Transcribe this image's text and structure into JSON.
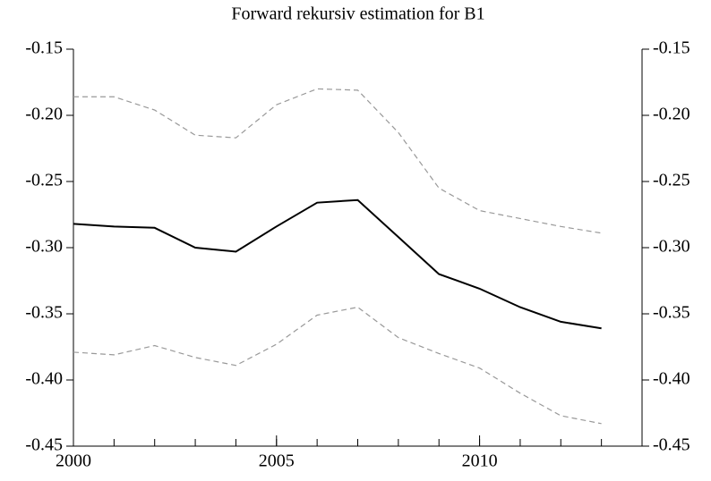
{
  "chart_data": {
    "type": "line",
    "title": "Forward rekursiv estimation for B1",
    "x": [
      2000,
      2001,
      2002,
      2003,
      2004,
      2005,
      2006,
      2007,
      2008,
      2009,
      2010,
      2011,
      2012,
      2013
    ],
    "series": [
      {
        "color": "#000000",
        "style": "solid",
        "values": [
          -0.282,
          -0.284,
          -0.285,
          -0.3,
          -0.303,
          -0.284,
          -0.266,
          -0.264,
          -0.292,
          -0.32,
          -0.331,
          -0.345,
          -0.356,
          -0.361
        ]
      },
      {
        "color": "#999999",
        "style": "dashed",
        "values": [
          -0.186,
          -0.186,
          -0.196,
          -0.215,
          -0.217,
          -0.192,
          -0.18,
          -0.181,
          -0.213,
          -0.255,
          -0.272,
          -0.278,
          -0.284,
          -0.289
        ]
      },
      {
        "color": "#999999",
        "style": "dashed",
        "values": [
          -0.379,
          -0.381,
          -0.374,
          -0.383,
          -0.389,
          -0.373,
          -0.351,
          -0.345,
          -0.368,
          -0.38,
          -0.391,
          -0.41,
          -0.427,
          -0.433
        ]
      }
    ],
    "xlim": [
      2000,
      2014
    ],
    "xticks": [
      2000,
      2005,
      2010
    ],
    "ylim": [
      -0.45,
      -0.15
    ],
    "yticks": [
      -0.45,
      {
        "value": -0.4,
        "label": "-0.40"
      },
      -0.35,
      {
        "value": -0.3,
        "label": "-0.30"
      },
      -0.25,
      {
        "value": -0.2,
        "label": "-0.20"
      },
      -0.15
    ],
    "grid": false
  }
}
